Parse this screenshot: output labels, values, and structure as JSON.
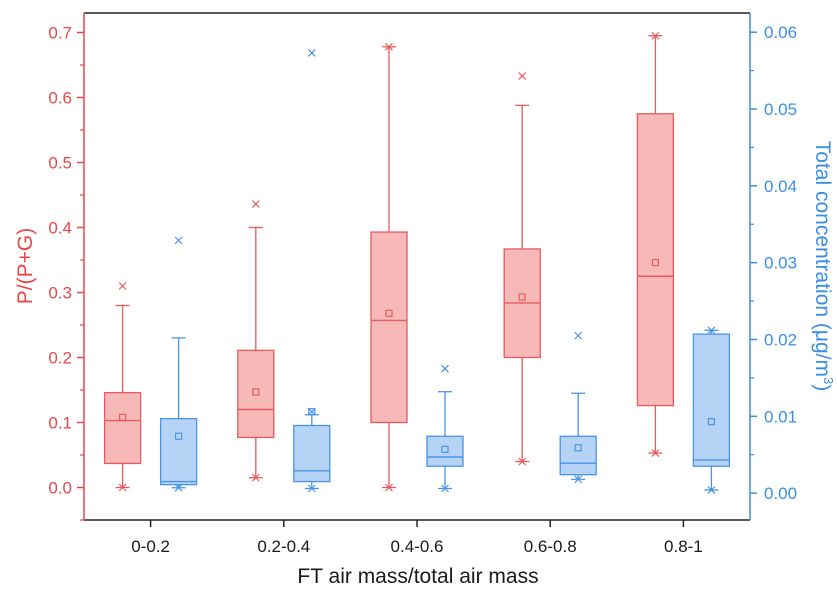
{
  "chart_data": {
    "type": "box",
    "categories": [
      "0-0.2",
      "0.2-0.4",
      "0.4-0.6",
      "0.6-0.8",
      "0.8-1"
    ],
    "xlabel": "FT air mass/total air mass",
    "ylabel_left": "P/(P+G)",
    "ylabel_right_text": "Total concentration (μg/m",
    "ylabel_right_superscript": "3",
    "ylabel_right_close": ")",
    "ylim_left": [
      -0.05,
      0.73
    ],
    "ylim_right": [
      -0.0035,
      0.0625
    ],
    "left_ticks": [
      "0.0",
      "0.1",
      "0.2",
      "0.3",
      "0.4",
      "0.5",
      "0.6",
      "0.7"
    ],
    "right_ticks": [
      "0.00",
      "0.01",
      "0.02",
      "0.03",
      "0.04",
      "0.05",
      "0.06"
    ],
    "grid": false,
    "colors": {
      "left_axis": "#e8474a",
      "right_axis": "#3a8ee6",
      "red_box_fill": "#f7b8b8",
      "red_box_stroke": "#e85a5c",
      "blue_box_fill": "#b5d3f5",
      "blue_box_stroke": "#4a94e6"
    },
    "series": [
      {
        "axis": "left",
        "boxes": [
          {
            "q1": 0.037,
            "median": 0.103,
            "q3": 0.146,
            "whisker_low": 0.0,
            "whisker_high": 0.28,
            "mean": 0.108,
            "outliers_high": [
              0.31
            ],
            "outliers_low": [
              0.0
            ]
          },
          {
            "q1": 0.077,
            "median": 0.12,
            "q3": 0.211,
            "whisker_low": 0.015,
            "whisker_high": 0.4,
            "mean": 0.147,
            "outliers_high": [
              0.436
            ],
            "outliers_low": [
              0.015
            ]
          },
          {
            "q1": 0.1,
            "median": 0.257,
            "q3": 0.393,
            "whisker_low": 0.0,
            "whisker_high": 0.678,
            "mean": 0.268,
            "outliers_high": [
              0.678
            ],
            "outliers_low": [
              0.0
            ]
          },
          {
            "q1": 0.2,
            "median": 0.284,
            "q3": 0.367,
            "whisker_low": 0.04,
            "whisker_high": 0.588,
            "mean": 0.293,
            "outliers_high": [
              0.633
            ],
            "outliers_low": [
              0.04
            ]
          },
          {
            "q1": 0.126,
            "median": 0.325,
            "q3": 0.575,
            "whisker_low": 0.053,
            "whisker_high": 0.695,
            "mean": 0.346,
            "outliers_high": [
              0.695
            ],
            "outliers_low": [
              0.053
            ]
          }
        ]
      },
      {
        "axis": "right",
        "boxes": [
          {
            "q1": 0.0011,
            "median": 0.0015,
            "q3": 0.0097,
            "whisker_low": 0.0007,
            "whisker_high": 0.0202,
            "mean": 0.0074,
            "outliers_high": [
              0.0329
            ],
            "outliers_low": [
              0.0007
            ]
          },
          {
            "q1": 0.0015,
            "median": 0.0029,
            "q3": 0.0088,
            "whisker_low": 0.0006,
            "whisker_high": 0.0102,
            "mean": 0.0106,
            "outliers_high": [
              0.0573,
              0.0106
            ],
            "outliers_low": [
              0.0006
            ]
          },
          {
            "q1": 0.0035,
            "median": 0.0047,
            "q3": 0.0074,
            "whisker_low": 0.0006,
            "whisker_high": 0.0132,
            "mean": 0.0057,
            "outliers_high": [
              0.0162
            ],
            "outliers_low": [
              0.0006
            ]
          },
          {
            "q1": 0.0024,
            "median": 0.0039,
            "q3": 0.0074,
            "whisker_low": 0.0018,
            "whisker_high": 0.013,
            "mean": 0.0059,
            "outliers_high": [
              0.0205
            ],
            "outliers_low": [
              0.0018
            ]
          },
          {
            "q1": 0.0035,
            "median": 0.0043,
            "q3": 0.0207,
            "whisker_low": 0.0004,
            "whisker_high": 0.0212,
            "mean": 0.0093,
            "outliers_high": [
              0.0212
            ],
            "outliers_low": [
              0.0004
            ]
          }
        ]
      }
    ]
  }
}
